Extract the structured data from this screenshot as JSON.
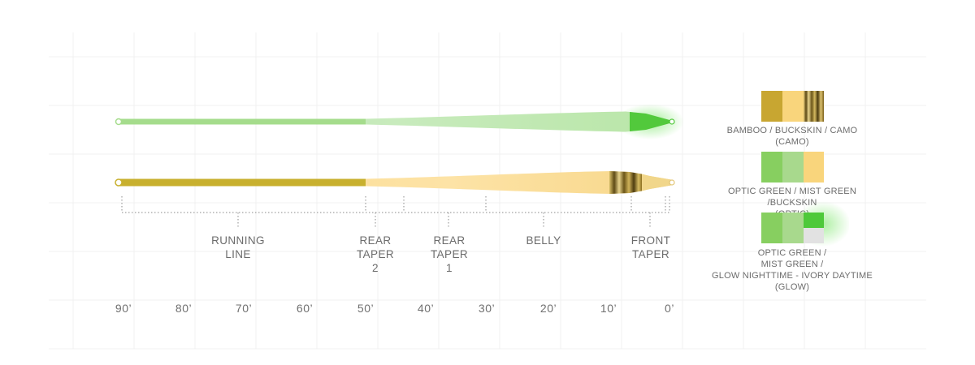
{
  "diagram": {
    "lines": [
      {
        "name": "optic-line",
        "colors": {
          "running": "#a7e08a",
          "body": "#c9ecc0",
          "tip": "#4ec93a",
          "glow": "#58e040"
        }
      },
      {
        "name": "camo-line",
        "colors": {
          "running": "#c9b22e",
          "body": "#fde09a",
          "tip": "#f1d68a",
          "band": "#6a5418"
        }
      }
    ],
    "segments": [
      {
        "id": "running-line",
        "lines": [
          "RUNNING",
          "LINE"
        ]
      },
      {
        "id": "rear-taper-2",
        "lines": [
          "REAR",
          "TAPER",
          "2"
        ]
      },
      {
        "id": "rear-taper-1",
        "lines": [
          "REAR",
          "TAPER",
          "1"
        ]
      },
      {
        "id": "belly",
        "lines": [
          "BELLY"
        ]
      },
      {
        "id": "front-taper",
        "lines": [
          "FRONT",
          "TAPER"
        ]
      }
    ],
    "axis_ticks": [
      "90’",
      "80’",
      "70’",
      "60’",
      "50’",
      "40’",
      "30’",
      "20’",
      "10’",
      "0’"
    ]
  },
  "swatches": [
    {
      "colors": [
        "#c8a631",
        "#f9d57c",
        "camo-band"
      ],
      "caption": [
        "BAMBOO / BUCKSKIN / CAMO",
        "(CAMO)"
      ]
    },
    {
      "colors": [
        "#87cf60",
        "#a8d98d",
        "#f9d57c"
      ],
      "caption": [
        "OPTIC GREEN / MIST GREEN /BUCKSKIN",
        "(OPTIC)"
      ]
    },
    {
      "colors": [
        "#87cf60",
        "#a8d98d",
        "#4ec93a|#e2e2e2"
      ],
      "caption": [
        "OPTIC GREEN /",
        "MIST GREEN /",
        "GLOW NIGHTTIME - IVORY DAYTIME",
        "(GLOW)"
      ]
    }
  ]
}
